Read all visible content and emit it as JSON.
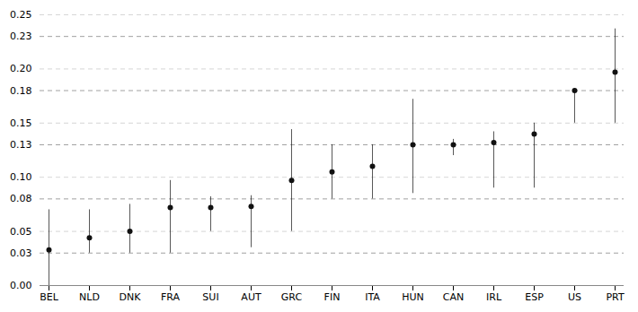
{
  "chart_data": {
    "type": "errorbar",
    "categories": [
      "BEL",
      "NLD",
      "DNK",
      "FRA",
      "SUI",
      "AUT",
      "GRC",
      "FIN",
      "ITA",
      "HUN",
      "CAN",
      "IRL",
      "ESP",
      "US",
      "PRT"
    ],
    "values": [
      0.033,
      0.044,
      0.05,
      0.072,
      0.072,
      0.073,
      0.097,
      0.105,
      0.11,
      0.13,
      0.13,
      0.132,
      0.14,
      0.18,
      0.197
    ],
    "lower_errors": [
      0.033,
      0.014,
      0.02,
      0.042,
      0.022,
      0.038,
      0.047,
      0.025,
      0.03,
      0.045,
      0.01,
      0.042,
      0.05,
      0.03,
      0.047
    ],
    "upper_errors": [
      0.037,
      0.026,
      0.025,
      0.025,
      0.01,
      0.01,
      0.047,
      0.025,
      0.02,
      0.042,
      0.005,
      0.01,
      0.01,
      0.0,
      0.04
    ],
    "color": "#111111",
    "ylim": [
      0.0,
      0.25
    ],
    "yticks": [
      {
        "value": 0,
        "label": "0.00"
      },
      0.03,
      0.05,
      0.08,
      {
        "value": 0.1,
        "label": "0.10"
      },
      0.13,
      0.15,
      0.18,
      {
        "value": 0.2,
        "label": "0.20"
      },
      0.23,
      0.25
    ],
    "grid": true
  }
}
